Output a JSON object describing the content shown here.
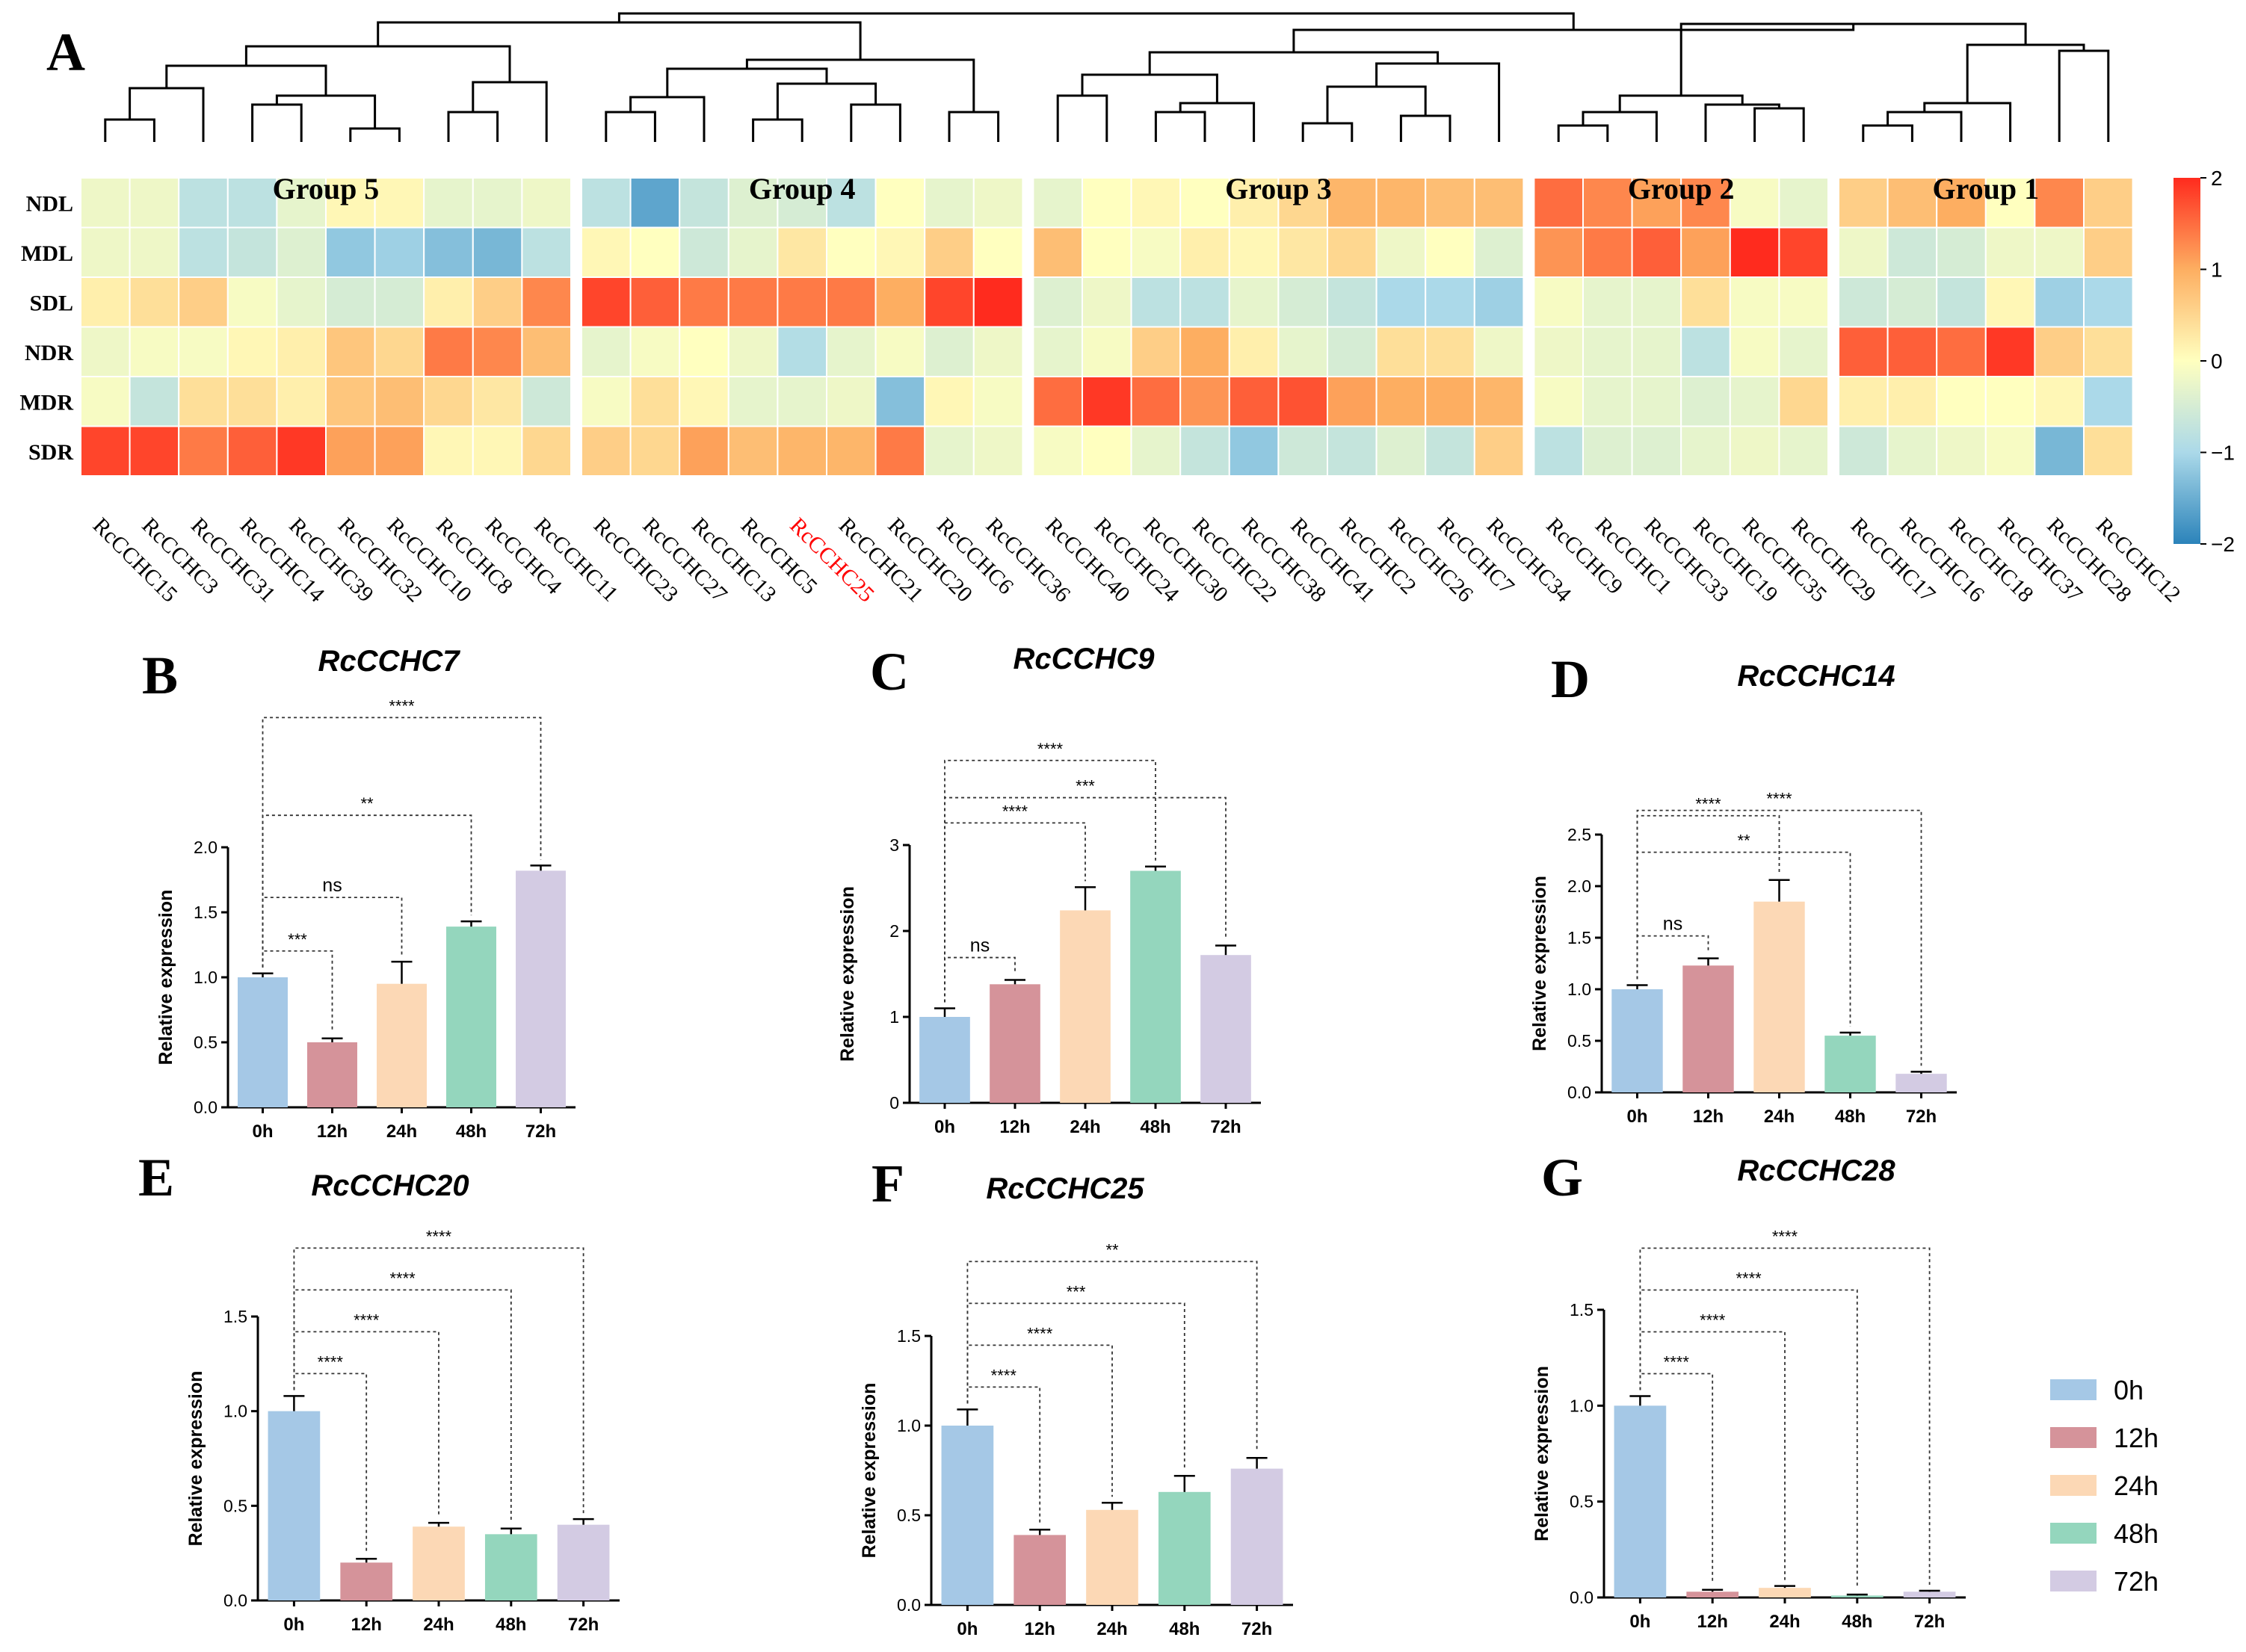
{
  "figure": {
    "legend": {
      "items": [
        {
          "label": "0h",
          "color": "#a5c8e6"
        },
        {
          "label": "12h",
          "color": "#d5939a"
        },
        {
          "label": "24h",
          "color": "#fcd8b5"
        },
        {
          "label": "48h",
          "color": "#94d6bd"
        },
        {
          "label": "72h",
          "color": "#d3cbe3"
        }
      ]
    }
  },
  "chart_data": [
    {
      "panel": "A",
      "type": "heatmap",
      "rows": [
        "NDL",
        "MDL",
        "SDL",
        "NDR",
        "MDR",
        "SDR"
      ],
      "groups": [
        {
          "name": "Group 5",
          "columns": [
            "RcCCHC15",
            "RcCCHC3",
            "RcCCHC31",
            "RcCCHC14",
            "RcCCHC39",
            "RcCCHC32",
            "RcCCHC10",
            "RcCCHC8",
            "RcCCHC4",
            "RcCCHC11"
          ]
        },
        {
          "name": "Group 4",
          "columns": [
            "RcCCHC23",
            "RcCCHC27",
            "RcCCHC13",
            "RcCCHC5",
            "RcCCHC25",
            "RcCCHC21",
            "RcCCHC20",
            "RcCCHC6",
            "RcCCHC36"
          ]
        },
        {
          "name": "Group 3",
          "columns": [
            "RcCCHC40",
            "RcCCHC24",
            "RcCCHC30",
            "RcCCHC22",
            "RcCCHC38",
            "RcCCHC41",
            "RcCCHC2",
            "RcCCHC26",
            "RcCCHC7",
            "RcCCHC34"
          ]
        },
        {
          "name": "Group 2",
          "columns": [
            "RcCCHC9",
            "RcCCHC1",
            "RcCCHC33",
            "RcCCHC19",
            "RcCCHC35",
            "RcCCHC29"
          ]
        },
        {
          "name": "Group 1",
          "columns": [
            "RcCCHC17",
            "RcCCHC16",
            "RcCCHC18",
            "RcCCHC37",
            "RcCCHC28",
            "RcCCHC12"
          ]
        }
      ],
      "highlight_gene": "RcCCHC25",
      "highlight_color": "#ff0000",
      "scale": {
        "min": -2,
        "max": 2,
        "ticks": [
          "2",
          "1",
          "0",
          "−1",
          "−2"
        ],
        "colors": [
          "#2b83ba",
          "#abd9e9",
          "#ffffbf",
          "#fdae61",
          "#ff2b1e"
        ]
      },
      "values": [
        [
          -0.2,
          -0.2,
          -0.8,
          -0.8,
          -0.3,
          0.1,
          0.1,
          -0.3,
          -0.3,
          -0.2,
          -0.8,
          -1.6,
          -0.7,
          -0.4,
          -0.5,
          -0.8,
          0.0,
          -0.3,
          -0.2,
          -0.3,
          0.0,
          0.1,
          0.0,
          0.2,
          0.5,
          0.9,
          0.9,
          0.8,
          0.8,
          1.5,
          1.3,
          1.1,
          1.3,
          -0.1,
          -0.3,
          0.6,
          0.8,
          1.0,
          0.0,
          1.3,
          0.6
        ],
        [
          -0.2,
          -0.2,
          -0.8,
          -0.7,
          -0.4,
          -1.2,
          -1.1,
          -1.3,
          -1.4,
          -0.8,
          0.1,
          0.0,
          -0.6,
          -0.3,
          0.3,
          0.0,
          0.1,
          0.6,
          0.0,
          0.8,
          0.0,
          -0.1,
          0.2,
          0.1,
          0.3,
          0.5,
          -0.2,
          0.0,
          -0.4,
          1.2,
          1.4,
          1.6,
          1.1,
          2.0,
          1.8,
          -0.2,
          -0.6,
          -0.5,
          -0.2,
          -0.2,
          0.6
        ],
        [
          0.2,
          0.4,
          0.6,
          -0.1,
          -0.3,
          -0.5,
          -0.5,
          0.2,
          0.6,
          1.3,
          1.8,
          1.6,
          1.4,
          1.4,
          1.4,
          1.4,
          1.0,
          1.8,
          2.0,
          -0.4,
          -0.2,
          -0.8,
          -0.8,
          -0.3,
          -0.5,
          -0.7,
          -1.0,
          -1.0,
          -1.1,
          -0.1,
          -0.3,
          -0.3,
          0.4,
          -0.1,
          -0.1,
          -0.6,
          -0.5,
          -0.7,
          0.1,
          -1.1,
          -1.0
        ],
        [
          -0.2,
          -0.1,
          -0.1,
          0.1,
          0.2,
          0.7,
          0.5,
          1.4,
          1.3,
          0.8,
          -0.3,
          -0.1,
          0.0,
          -0.2,
          -0.9,
          -0.3,
          -0.1,
          -0.4,
          -0.2,
          -0.3,
          -0.1,
          0.6,
          1.0,
          0.2,
          -0.3,
          -0.5,
          0.4,
          0.4,
          -0.2,
          -0.2,
          -0.3,
          -0.3,
          -0.8,
          -0.1,
          -0.3,
          1.6,
          1.6,
          1.5,
          1.9,
          0.6,
          0.4
        ],
        [
          -0.1,
          -0.7,
          0.4,
          0.4,
          0.2,
          0.7,
          0.8,
          0.5,
          0.3,
          -0.6,
          -0.1,
          0.4,
          0.1,
          -0.3,
          -0.3,
          -0.2,
          -1.3,
          0.1,
          -0.1,
          1.5,
          1.9,
          1.5,
          1.2,
          1.6,
          1.7,
          1.1,
          1.0,
          1.0,
          0.9,
          -0.1,
          -0.3,
          -0.3,
          -0.4,
          -0.3,
          0.5,
          0.2,
          0.2,
          0.0,
          0.0,
          0.1,
          -1.0
        ],
        [
          1.8,
          1.8,
          1.4,
          1.6,
          1.9,
          1.1,
          1.1,
          0.1,
          0.1,
          0.5,
          0.6,
          0.5,
          1.1,
          0.8,
          0.9,
          0.9,
          1.4,
          -0.3,
          -0.2,
          -0.1,
          0.0,
          -0.3,
          -0.7,
          -1.2,
          -0.6,
          -0.7,
          -0.4,
          -0.7,
          0.6,
          -0.8,
          -0.4,
          -0.4,
          -0.3,
          -0.2,
          -0.3,
          -0.6,
          -0.3,
          -0.2,
          -0.1,
          -1.4,
          0.4
        ]
      ]
    },
    {
      "panel": "B",
      "type": "bar",
      "title": "RcCCHC7",
      "ylabel": "Relative expression",
      "categories": [
        "0h",
        "12h",
        "24h",
        "48h",
        "72h"
      ],
      "values": [
        1.0,
        0.5,
        0.95,
        1.39,
        1.82
      ],
      "errors": [
        0.03,
        0.03,
        0.17,
        0.04,
        0.04
      ],
      "ylim": [
        0,
        2.0
      ],
      "yticks": [
        "0.0",
        "0.5",
        "1.0",
        "1.5",
        "2.0"
      ],
      "yticks_values": [
        0,
        0.5,
        1,
        1.5,
        2
      ],
      "comparisons": [
        {
          "target": 1,
          "label": "***"
        },
        {
          "target": 2,
          "label": "ns"
        },
        {
          "target": 3,
          "label": "**"
        },
        {
          "target": 4,
          "label": "****"
        }
      ]
    },
    {
      "panel": "C",
      "type": "bar",
      "title": "RcCCHC9",
      "ylabel": "Relative expression",
      "categories": [
        "0h",
        "12h",
        "24h",
        "48h",
        "72h"
      ],
      "values": [
        1.0,
        1.38,
        2.24,
        2.7,
        1.72
      ],
      "errors": [
        0.1,
        0.05,
        0.27,
        0.05,
        0.11
      ],
      "ylim": [
        0,
        3.0
      ],
      "yticks": [
        "0",
        "1",
        "2",
        "3"
      ],
      "yticks_values": [
        0,
        1,
        2,
        3
      ],
      "comparisons": [
        {
          "target": 1,
          "label": "ns"
        },
        {
          "target": 2,
          "label": "****"
        },
        {
          "target": 3,
          "label": "****"
        },
        {
          "target": 4,
          "label": "***"
        }
      ]
    },
    {
      "panel": "D",
      "type": "bar",
      "title": "RcCCHC14",
      "ylabel": "Relative expression",
      "categories": [
        "0h",
        "12h",
        "24h",
        "48h",
        "72h"
      ],
      "values": [
        1.0,
        1.23,
        1.85,
        0.55,
        0.18
      ],
      "errors": [
        0.04,
        0.07,
        0.21,
        0.03,
        0.02
      ],
      "ylim": [
        0,
        2.5
      ],
      "yticks": [
        "0.0",
        "0.5",
        "1.0",
        "1.5",
        "2.0",
        "2.5"
      ],
      "yticks_values": [
        0,
        0.5,
        1,
        1.5,
        2,
        2.5
      ],
      "comparisons": [
        {
          "target": 1,
          "label": "ns"
        },
        {
          "target": 2,
          "label": "****"
        },
        {
          "target": 3,
          "label": "**"
        },
        {
          "target": 4,
          "label": "****"
        }
      ]
    },
    {
      "panel": "E",
      "type": "bar",
      "title": "RcCCHC20",
      "ylabel": "Relative expression",
      "categories": [
        "0h",
        "12h",
        "24h",
        "48h",
        "72h"
      ],
      "values": [
        1.0,
        0.2,
        0.39,
        0.35,
        0.4
      ],
      "errors": [
        0.08,
        0.02,
        0.02,
        0.03,
        0.03
      ],
      "ylim": [
        0,
        1.5
      ],
      "yticks": [
        "0.0",
        "0.5",
        "1.0",
        "1.5"
      ],
      "yticks_values": [
        0,
        0.5,
        1,
        1.5
      ],
      "comparisons": [
        {
          "target": 1,
          "label": "****"
        },
        {
          "target": 2,
          "label": "****"
        },
        {
          "target": 3,
          "label": "****"
        },
        {
          "target": 4,
          "label": "****"
        }
      ]
    },
    {
      "panel": "F",
      "type": "bar",
      "title": "RcCCHC25",
      "ylabel": "Relative expression",
      "categories": [
        "0h",
        "12h",
        "24h",
        "48h",
        "72h"
      ],
      "values": [
        1.0,
        0.39,
        0.53,
        0.63,
        0.76
      ],
      "errors": [
        0.09,
        0.03,
        0.04,
        0.09,
        0.06
      ],
      "ylim": [
        0,
        1.5
      ],
      "yticks": [
        "0.0",
        "0.5",
        "1.0",
        "1.5"
      ],
      "yticks_values": [
        0,
        0.5,
        1,
        1.5
      ],
      "comparisons": [
        {
          "target": 1,
          "label": "****"
        },
        {
          "target": 2,
          "label": "****"
        },
        {
          "target": 3,
          "label": "***"
        },
        {
          "target": 4,
          "label": "**"
        }
      ]
    },
    {
      "panel": "G",
      "type": "bar",
      "title": "RcCCHC28",
      "ylabel": "Relative expression",
      "categories": [
        "0h",
        "12h",
        "24h",
        "48h",
        "72h"
      ],
      "values": [
        1.0,
        0.03,
        0.05,
        0.01,
        0.03
      ],
      "errors": [
        0.05,
        0.01,
        0.01,
        0.005,
        0.005
      ],
      "ylim": [
        0,
        1.5
      ],
      "yticks": [
        "0.0",
        "0.5",
        "1.0",
        "1.5"
      ],
      "yticks_values": [
        0,
        0.5,
        1,
        1.5
      ],
      "comparisons": [
        {
          "target": 1,
          "label": "****"
        },
        {
          "target": 2,
          "label": "****"
        },
        {
          "target": 3,
          "label": "****"
        },
        {
          "target": 4,
          "label": "****"
        }
      ]
    }
  ]
}
